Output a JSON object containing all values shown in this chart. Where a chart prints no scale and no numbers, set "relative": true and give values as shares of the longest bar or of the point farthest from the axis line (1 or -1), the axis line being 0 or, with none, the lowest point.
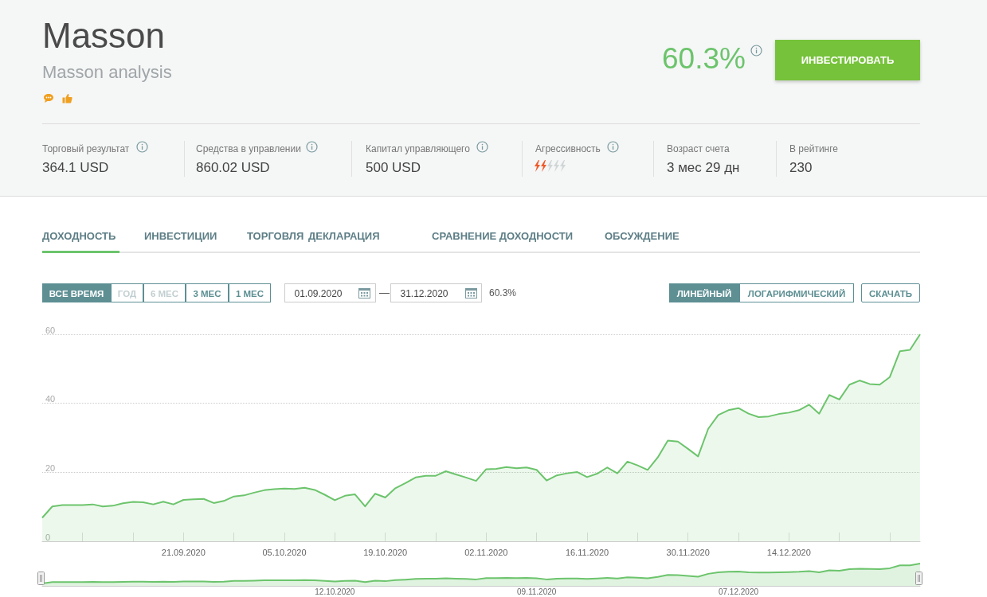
{
  "chart_data": [
    {
      "type": "area",
      "title": "Masson",
      "subtitle": "Masson analysis",
      "annotations": [
        "60.3%",
        "ИНВЕСТИРОВАТЬ",
        "Торговый результат",
        "364.1 USD",
        "Средства в управлении",
        "860.02 USD",
        "Капитал управляющего",
        "500 USD",
        "Агрессивность",
        "Возраст счета",
        "3 мес 29 дн",
        "В рейтинге",
        "230",
        "ДОХОДНОСТЬ",
        "ИНВЕСТИЦИИ",
        "ТОРГОВЛЯ",
        "ДЕКЛАРАЦИЯ",
        "СРАВНЕНИЕ ДОХОДНОСТИ",
        "ОБСУЖДЕНИЕ",
        "ВСЕ ВРЕМЯ",
        "ГОД",
        "6 МЕС",
        "3 МЕС",
        "1 МЕС",
        "01.09.2020",
        "—",
        "31.12.2020",
        "60.3%",
        "ЛИНЕЙНЫЙ",
        "ЛОГАРИФМИЧЕСКИЙ",
        "СКАЧАТЬ"
      ],
      "categories": [
        null,
        null,
        null,
        null,
        null,
        null,
        null,
        null,
        null,
        null,
        null,
        null,
        null,
        null,
        "21.09.2020",
        null,
        null,
        null,
        null,
        null,
        null,
        null,
        null,
        null,
        "05.10.2020",
        null,
        null,
        null,
        null,
        null,
        null,
        null,
        null,
        null,
        "19.10.2020",
        null,
        null,
        null,
        null,
        null,
        null,
        null,
        null,
        null,
        "02.11.2020",
        null,
        null,
        null,
        null,
        null,
        null,
        null,
        null,
        null,
        "16.11.2020",
        null,
        null,
        null,
        null,
        null,
        null,
        null,
        null,
        null,
        "30.11.2020",
        null,
        null,
        null,
        null,
        null,
        null,
        null,
        null,
        null,
        "14.12.2020",
        null,
        null,
        null,
        null,
        null,
        null,
        null,
        null,
        null,
        null,
        null,
        null,
        null
      ],
      "values": [
        6.8,
        10.1,
        10.5,
        10.5,
        10.5,
        10.7,
        10.1,
        10.3,
        11.0,
        11.4,
        11.3,
        10.7,
        11.5,
        10.7,
        12.0,
        12.2,
        12.3,
        11.1,
        11.7,
        13.0,
        13.3,
        14.1,
        14.8,
        15.1,
        15.3,
        15.2,
        15.5,
        14.9,
        13.5,
        11.9,
        13.2,
        13.6,
        10.1,
        13.8,
        12.7,
        15.4,
        16.9,
        18.5,
        19.0,
        19.0,
        20.3,
        19.4,
        18.5,
        17.5,
        20.9,
        21.0,
        21.5,
        21.2,
        21.4,
        20.7,
        17.6,
        19.1,
        19.7,
        20.1,
        18.6,
        19.6,
        21.4,
        19.7,
        23.1,
        22.0,
        20.7,
        24.3,
        29.2,
        28.9,
        26.8,
        24.6,
        32.6,
        36.6,
        38.0,
        38.6,
        37.0,
        36.0,
        36.2,
        36.9,
        37.3,
        38.0,
        39.6,
        37.0,
        42.4,
        41.1,
        45.4,
        46.6,
        45.6,
        45.4,
        47.6,
        55.1,
        55.5,
        60.0
      ],
      "color": "#6cc46c",
      "ylim": [
        0,
        60
      ],
      "yticks": [
        0,
        20,
        40,
        60
      ],
      "grid": "y"
    },
    {
      "type": "area",
      "relative": true,
      "categories": [
        null,
        null,
        null,
        null,
        null,
        null,
        null,
        null,
        null,
        null,
        null,
        null,
        null,
        null,
        null,
        null,
        null,
        null,
        null,
        null,
        null,
        null,
        null,
        null,
        null,
        null,
        null,
        null,
        null,
        "12.10.2020",
        null,
        null,
        null,
        null,
        null,
        null,
        null,
        null,
        null,
        null,
        null,
        null,
        null,
        null,
        null,
        null,
        null,
        null,
        null,
        "09.11.2020",
        null,
        null,
        null,
        null,
        null,
        null,
        null,
        null,
        null,
        null,
        null,
        null,
        null,
        null,
        null,
        null,
        null,
        null,
        null,
        "07.12.2020",
        null,
        null,
        null,
        null,
        null,
        null,
        null,
        null,
        null,
        null,
        null,
        null,
        null,
        null,
        null,
        null,
        null,
        null
      ],
      "values": [
        0.11,
        0.17,
        0.17,
        0.17,
        0.17,
        0.18,
        0.17,
        0.17,
        0.18,
        0.19,
        0.19,
        0.18,
        0.19,
        0.18,
        0.2,
        0.2,
        0.2,
        0.18,
        0.19,
        0.22,
        0.22,
        0.23,
        0.25,
        0.25,
        0.25,
        0.25,
        0.26,
        0.25,
        0.22,
        0.2,
        0.22,
        0.23,
        0.17,
        0.23,
        0.21,
        0.26,
        0.28,
        0.31,
        0.32,
        0.32,
        0.34,
        0.32,
        0.31,
        0.29,
        0.35,
        0.35,
        0.36,
        0.35,
        0.36,
        0.34,
        0.29,
        0.32,
        0.33,
        0.33,
        0.31,
        0.33,
        0.36,
        0.33,
        0.38,
        0.37,
        0.34,
        0.4,
        0.49,
        0.48,
        0.45,
        0.41,
        0.54,
        0.61,
        0.63,
        0.64,
        0.61,
        0.6,
        0.6,
        0.61,
        0.62,
        0.63,
        0.66,
        0.61,
        0.7,
        0.68,
        0.75,
        0.77,
        0.76,
        0.75,
        0.79,
        0.92,
        0.92,
        1
      ],
      "color": "#6cc46c"
    }
  ]
}
